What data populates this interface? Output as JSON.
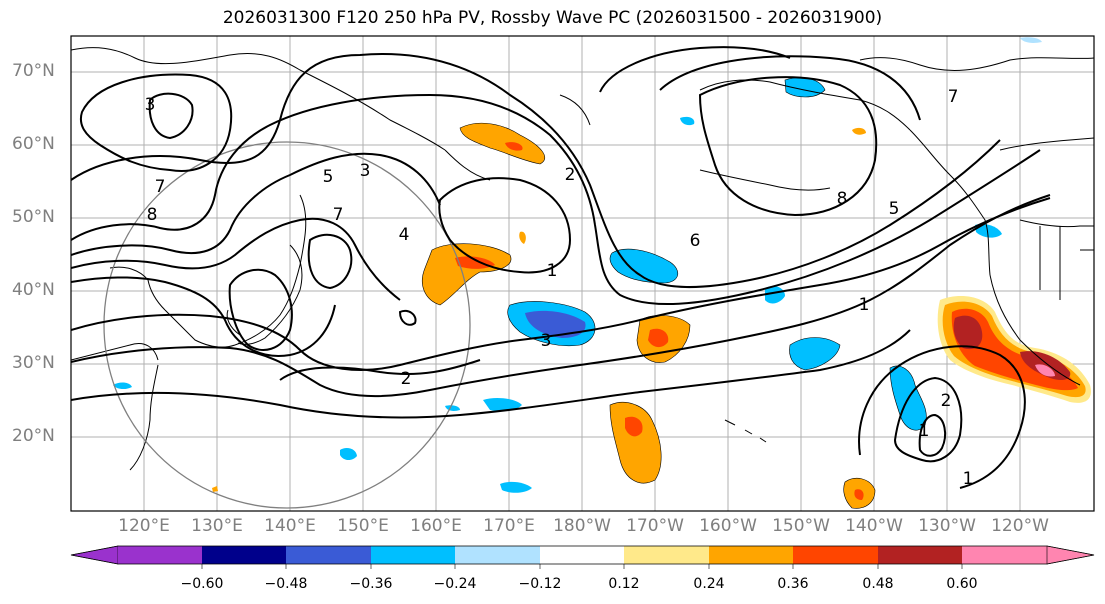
{
  "title": "2026031300 F120 250 hPa PV, Rossby Wave PC (2026031500 - 2026031900)",
  "lat_labels": [
    "70°N",
    "60°N",
    "50°N",
    "40°N",
    "30°N",
    "20°N"
  ],
  "lon_labels": [
    "120°E",
    "130°E",
    "140°E",
    "150°E",
    "160°E",
    "170°E",
    "180°W",
    "170°W",
    "160°W",
    "150°W",
    "140°W",
    "130°W",
    "120°W"
  ],
  "contour_labels": [
    "3",
    "3",
    "5",
    "7",
    "7",
    "8",
    "4",
    "2",
    "1",
    "6",
    "8",
    "5",
    "1",
    "7",
    "3",
    "2",
    "2",
    "1",
    "1"
  ],
  "colorbar": {
    "tick_labels": [
      "−0.60",
      "−0.48",
      "−0.36",
      "−0.24",
      "−0.12",
      "0.12",
      "0.24",
      "0.36",
      "0.48",
      "0.60"
    ],
    "colors": [
      "#9a32cd",
      "#00008b",
      "#3a5bd6",
      "#00bfff",
      "#b0e2ff",
      "#ffffff",
      "#ffe98a",
      "#ffa500",
      "#ff4500",
      "#b22222",
      "#ff85b0"
    ]
  },
  "colors": {
    "grid": "#b0b0b0",
    "coast": "#000000",
    "circle": "#808080"
  }
}
